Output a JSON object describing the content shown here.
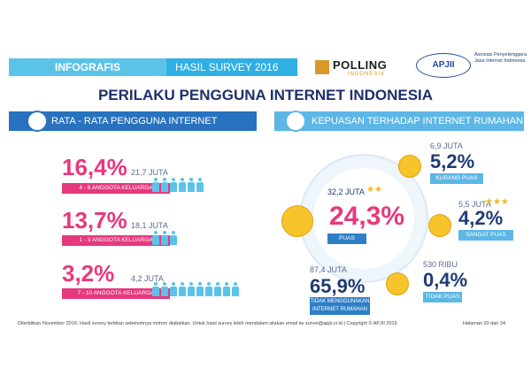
{
  "header": {
    "infografis_label": "INFOGRAFIS",
    "survey_label": "HASIL SURVEY 2016",
    "polling_name": "POLLING",
    "polling_sub": "INDONESIA",
    "apjii_logo": "APJII",
    "apjii_text": "Asosiasi Penyelenggara Jasa Internet Indonesia"
  },
  "title": "PERILAKU PENGGUNA INTERNET INDONESIA",
  "left_section": {
    "heading": "RATA - RATA PENGGUNA INTERNET RUMAHAN",
    "groups": [
      {
        "pct": "16,4%",
        "juta": "21,7 JUTA",
        "label": "4 - 6 ANGGOTA KELUARGA",
        "color": "#e6397d",
        "people": 6
      },
      {
        "pct": "13,7%",
        "juta": "18,1 JUTA",
        "label": "1 - 3 ANGGOTA KELUARGA",
        "color": "#e6397d",
        "people": 3
      },
      {
        "pct": "3,2%",
        "juta": "4,2 JUTA",
        "label": "7 - 10 ANGGOTA KELUARGA",
        "color": "#e6397d",
        "people": 10
      }
    ]
  },
  "right_section": {
    "heading": "KEPUASAN TERHADAP INTERNET RUMAHAN",
    "center": {
      "juta": "32,2 JUTA",
      "pct": "24,3%",
      "label": "PUAS"
    },
    "kurang": {
      "juta": "6,9 JUTA",
      "pct": "5,2%",
      "label": "KURANG PUAS"
    },
    "sangat": {
      "juta": "5,5 JUTA",
      "pct": "4,2%",
      "label": "SANGAT PUAS"
    },
    "tidak_menggunakan": {
      "juta": "87,4 JUTA",
      "pct": "65,9%",
      "label": "TIDAK MENGGUNAKAN INTERNET RUMAHAN"
    },
    "tidak_puas": {
      "juta": "530 RIBU",
      "pct": "0,4%",
      "label": "TIDAK PUAS"
    }
  },
  "footer": {
    "text": "Diterbitkan November 2016. Hasil survey terbitan sebelumnya mohon diabaikan. Untuk hasil survey lebih mendalam silakan email ke survei@apjii.or.id | Copyright © APJII 2016",
    "page": "Halaman   20 dari 34"
  },
  "colors": {
    "pink": "#e6397d",
    "navy": "#1f3b73",
    "blue": "#2872bf",
    "sky": "#5cc3e8",
    "smiley": "#f7c42b"
  }
}
